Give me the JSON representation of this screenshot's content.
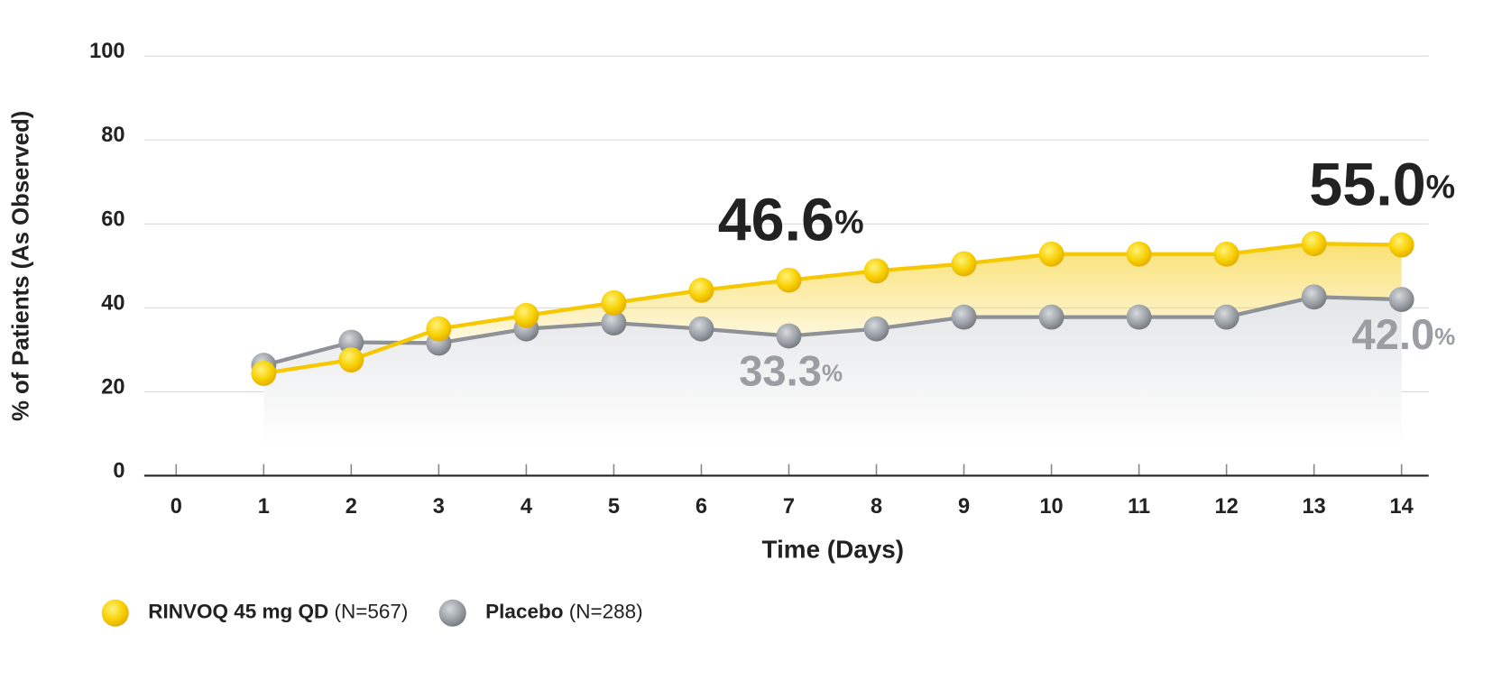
{
  "chart_data": {
    "type": "line",
    "x_label": "Time (Days)",
    "y_label": "% of Patients (As Observed)",
    "x": [
      1,
      2,
      3,
      4,
      5,
      6,
      7,
      8,
      9,
      10,
      11,
      12,
      13,
      14
    ],
    "xlim": [
      0,
      14
    ],
    "xticks": [
      0,
      1,
      2,
      3,
      4,
      5,
      6,
      7,
      8,
      9,
      10,
      11,
      12,
      13,
      14
    ],
    "ylim": [
      0,
      100
    ],
    "yticks": [
      0,
      20,
      40,
      60,
      80,
      100
    ],
    "grid": true,
    "legend": "bottom-left",
    "series": [
      {
        "name": "RINVOQ 45 mg QD (N=567)",
        "color": "#f5c800",
        "values": [
          24.4,
          27.6,
          35.0,
          38.2,
          41.2,
          44.2,
          46.6,
          48.8,
          50.5,
          52.8,
          52.8,
          52.8,
          55.3,
          55.0
        ],
        "value_labels": [
          null,
          null,
          null,
          null,
          null,
          null,
          "46.6%",
          null,
          null,
          null,
          null,
          null,
          null,
          "55.0%"
        ]
      },
      {
        "name": "Placebo (N=288)",
        "color": "#8e9297",
        "values": [
          26.3,
          31.8,
          31.6,
          35.0,
          36.4,
          35.0,
          33.3,
          35.0,
          37.8,
          37.8,
          37.8,
          37.8,
          42.6,
          42.0
        ],
        "value_labels": [
          null,
          null,
          null,
          null,
          null,
          null,
          "33.3%",
          null,
          null,
          null,
          null,
          null,
          null,
          "42.0%"
        ]
      }
    ]
  }
}
